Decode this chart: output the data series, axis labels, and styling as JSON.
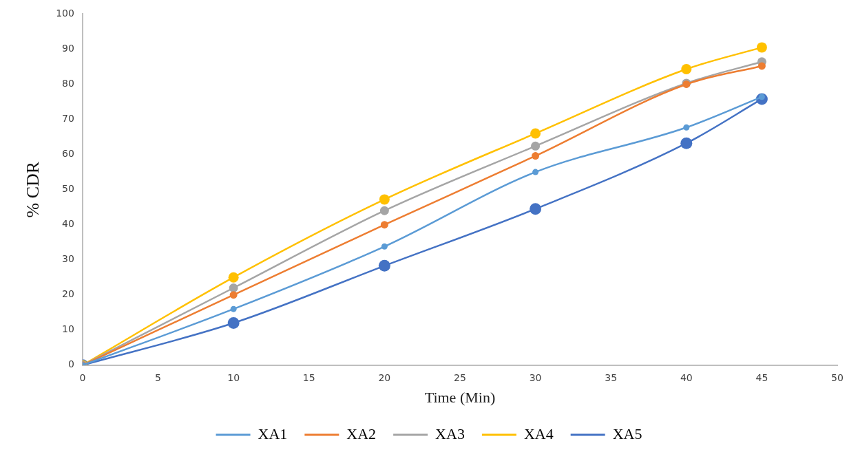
{
  "chart_data": {
    "type": "line",
    "xlabel": "Time (Min)",
    "ylabel": "% CDR",
    "x": [
      0,
      10,
      20,
      30,
      40,
      45
    ],
    "series": [
      {
        "name": "XA1",
        "color": "#5b9bd5",
        "values": [
          0,
          16,
          33.8,
          55,
          67.7,
          76.4
        ]
      },
      {
        "name": "XA2",
        "color": "#ed7d31",
        "values": [
          0,
          20,
          40,
          59.6,
          80,
          85.2
        ]
      },
      {
        "name": "XA3",
        "color": "#a5a5a5",
        "values": [
          0,
          22,
          44,
          62.4,
          80.3,
          86.4
        ]
      },
      {
        "name": "XA4",
        "color": "#ffc000",
        "values": [
          0,
          25,
          47.2,
          66,
          84.3,
          90.5
        ]
      },
      {
        "name": "XA5",
        "color": "#4472c4",
        "values": [
          0,
          12,
          28.3,
          44.5,
          63.2,
          75.8
        ]
      }
    ],
    "xlim": [
      0,
      50
    ],
    "xticks": [
      0,
      5,
      10,
      15,
      20,
      25,
      30,
      35,
      40,
      45,
      50
    ],
    "ylim": [
      0,
      100
    ],
    "yticks": [
      0,
      10,
      20,
      30,
      40,
      50,
      60,
      70,
      80,
      90,
      100
    ],
    "grid": false,
    "legend": "bottom",
    "marker": "circle",
    "line_style": "solid"
  }
}
